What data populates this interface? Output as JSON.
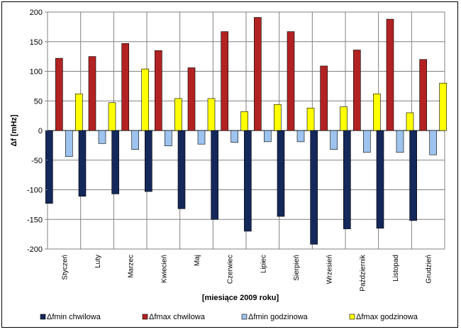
{
  "chart_data": {
    "type": "bar",
    "title": "",
    "xlabel": "[miesiące 2009 roku]",
    "ylabel": "Δf [mHz]",
    "ylim": [
      -200,
      200
    ],
    "yticks": [
      200,
      150,
      100,
      50,
      0,
      -50,
      -100,
      -150,
      -200
    ],
    "grid": true,
    "legend_position": "bottom",
    "categories": [
      "Styczeń",
      "Luty",
      "Marzec",
      "Kwiecień",
      "Maj",
      "Czerwiec",
      "Lipiec",
      "Sierpień",
      "Wrzesień",
      "Październik",
      "Listopad",
      "Grudzień"
    ],
    "series": [
      {
        "name": "Δfmin  chwilowa",
        "color": "#14285a",
        "values": [
          -123,
          -111,
          -107,
          -103,
          -132,
          -150,
          -170,
          -145,
          -192,
          -166,
          -165,
          -152
        ]
      },
      {
        "name": "Δfmax chwilowa",
        "color": "#b22222",
        "values": [
          122,
          125,
          147,
          135,
          106,
          167,
          191,
          167,
          109,
          136,
          188,
          120
        ]
      },
      {
        "name": "Δfmin  godzinowa",
        "color": "#9dc3ee",
        "values": [
          -44,
          -22,
          -32,
          -26,
          -23,
          -20,
          -19,
          -19,
          -32,
          -37,
          -37,
          -41
        ]
      },
      {
        "name": "Δfmax godzinowa",
        "color": "#ffff00",
        "values": [
          62,
          47,
          104,
          54,
          54,
          32,
          44,
          38,
          40,
          62,
          30,
          80
        ]
      }
    ]
  }
}
